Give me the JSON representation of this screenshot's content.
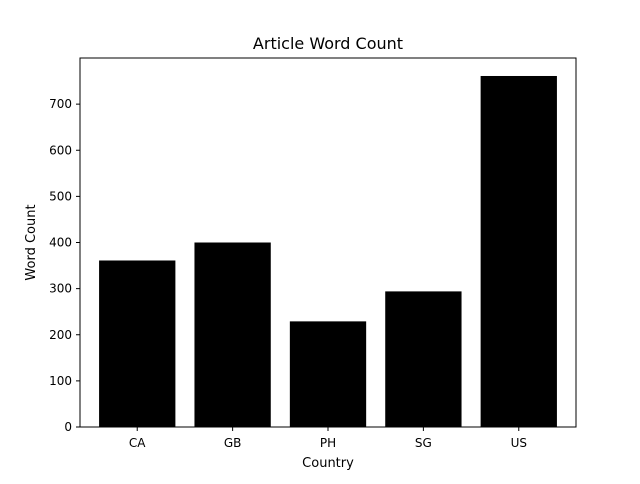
{
  "chart_data": {
    "type": "bar",
    "title": "Article Word Count",
    "xlabel": "Country",
    "ylabel": "Word Count",
    "categories": [
      "CA",
      "GB",
      "PH",
      "SG",
      "US"
    ],
    "values": [
      361,
      400,
      229,
      294,
      761
    ],
    "ylim": [
      0,
      800
    ],
    "yticks": [
      0,
      100,
      200,
      300,
      400,
      500,
      600,
      700
    ],
    "grid": false,
    "legend": "none",
    "bar_color": "#000000"
  }
}
